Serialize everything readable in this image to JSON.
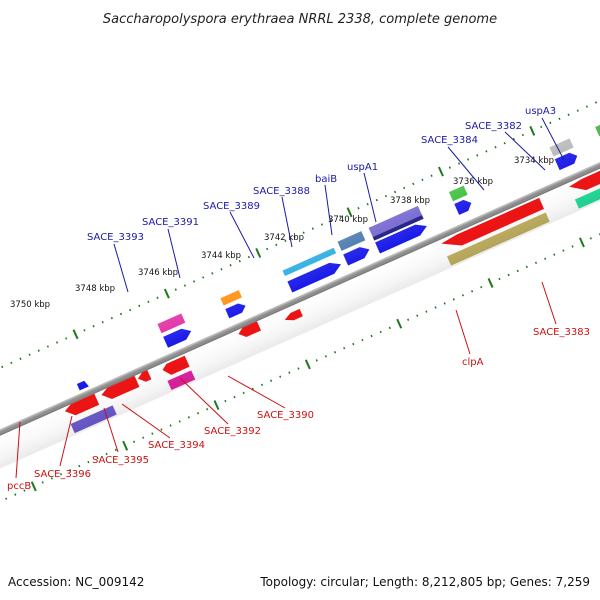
{
  "title": "Saccharopolyspora erythraea NRRL 2338, complete genome",
  "footer": {
    "accession": "Accession: NC_009142",
    "topology": "Topology: circular; Length: 8,212,805 bp; Genes: 7,259"
  },
  "scale_labels": [
    "3734 kbp",
    "3736 kbp",
    "3738 kbp",
    "3740 kbp",
    "3742 kbp",
    "3744 kbp",
    "3746 kbp",
    "3748 kbp",
    "3750 kbp"
  ],
  "upper_labels": [
    "uspA3",
    "SACE_3382",
    "SACE_3384",
    "uspA1",
    "baiB",
    "SACE_3388",
    "SACE_3389",
    "SACE_3391",
    "SACE_3393"
  ],
  "lower_labels": [
    "SACE_3383",
    "clpA",
    "SACE_3390",
    "SACE_3392",
    "SACE_3394",
    "SACE_3395",
    "SACE_3396",
    "pccB"
  ],
  "colors": {
    "upper_label": "#1a1aa8",
    "lower_label": "#cc1111",
    "backbone": "#888888",
    "scale_ticks": "#1f7a1f"
  }
}
